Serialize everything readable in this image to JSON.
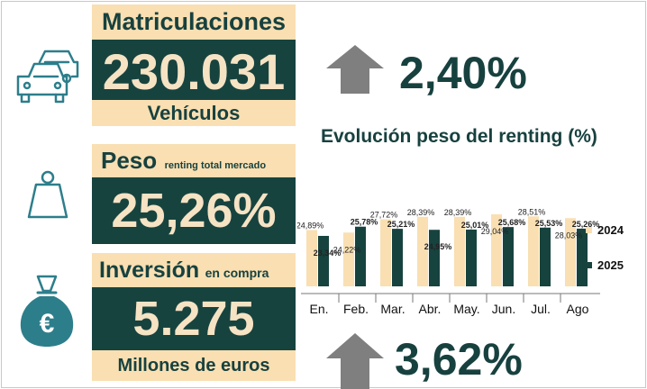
{
  "registrations": {
    "title": "Matriculaciones",
    "value": "230.031",
    "unit": "Vehículos",
    "change": "2,40%"
  },
  "weight": {
    "title": "Peso",
    "subtitle": "renting total mercado",
    "value": "25,26%"
  },
  "investment": {
    "title": "Inversión",
    "subtitle": "en compra",
    "value": "5.275",
    "unit": "Millones de euros",
    "change": "3,62%"
  },
  "icons": {
    "registrations": "cars-icon",
    "weight": "weight-icon",
    "investment": "euro-money-bag-icon",
    "change": "arrow-up-icon"
  },
  "colors": {
    "series_2024": "#f9dfb2",
    "series_2025": "#17433f",
    "text": "#17413f"
  },
  "chart_data": {
    "type": "bar",
    "title": "Evolución peso del renting (%)",
    "categories": [
      "En.",
      "Feb.",
      "Mar.",
      "Abr.",
      "May.",
      "Jun.",
      "Jul.",
      "Ago"
    ],
    "series": [
      {
        "name": "2024",
        "values": [
          24.89,
          24.22,
          27.72,
          28.39,
          28.39,
          29.04,
          28.51,
          28.03
        ],
        "labels": [
          "24,89%",
          "24,22%",
          "27,72%",
          "28,39%",
          "28,39%",
          "29,04%",
          "28,51%",
          "28,03%"
        ]
      },
      {
        "name": "2025",
        "values": [
          23.34,
          25.78,
          25.21,
          24.95,
          25.01,
          25.68,
          25.53,
          25.26
        ],
        "labels": [
          "23,34%",
          "25,78%",
          "25,21%",
          "24,95%",
          "25,01%",
          "25,68%",
          "25,53%",
          "25,26%"
        ]
      }
    ],
    "legend_position": "right",
    "grid": false
  }
}
